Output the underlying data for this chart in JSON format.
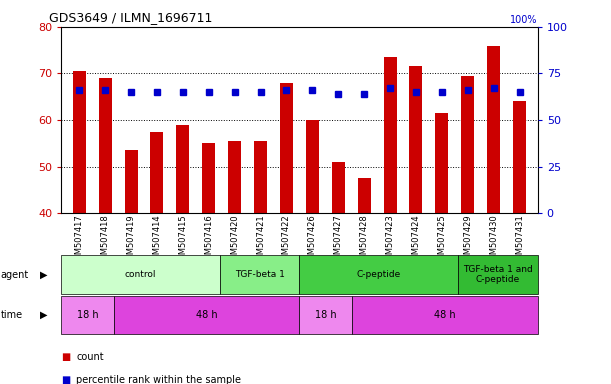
{
  "title": "GDS3649 / ILMN_1696711",
  "samples": [
    "GSM507417",
    "GSM507418",
    "GSM507419",
    "GSM507414",
    "GSM507415",
    "GSM507416",
    "GSM507420",
    "GSM507421",
    "GSM507422",
    "GSM507426",
    "GSM507427",
    "GSM507428",
    "GSM507423",
    "GSM507424",
    "GSM507425",
    "GSM507429",
    "GSM507430",
    "GSM507431"
  ],
  "counts": [
    70.5,
    69.0,
    53.5,
    57.5,
    59.0,
    55.0,
    55.5,
    55.5,
    68.0,
    60.0,
    51.0,
    47.5,
    73.5,
    71.5,
    61.5,
    69.5,
    76.0,
    64.0
  ],
  "percentiles": [
    66,
    66,
    65,
    65,
    65,
    65,
    65,
    65,
    66,
    66,
    64,
    64,
    67,
    65,
    65,
    66,
    67,
    65
  ],
  "ylim": [
    40,
    80
  ],
  "y2lim": [
    0,
    100
  ],
  "yticks": [
    40,
    50,
    60,
    70,
    80
  ],
  "y2ticks": [
    0,
    25,
    50,
    75,
    100
  ],
  "bar_color": "#cc0000",
  "dot_color": "#0000cc",
  "agent_groups": [
    {
      "label": "control",
      "start": 0,
      "end": 6,
      "color": "#ccffcc"
    },
    {
      "label": "TGF-beta 1",
      "start": 6,
      "end": 9,
      "color": "#88ee88"
    },
    {
      "label": "C-peptide",
      "start": 9,
      "end": 15,
      "color": "#44cc44"
    },
    {
      "label": "TGF-beta 1 and\nC-peptide",
      "start": 15,
      "end": 18,
      "color": "#33bb33"
    }
  ],
  "time_groups": [
    {
      "label": "18 h",
      "start": 0,
      "end": 2,
      "color": "#ee88ee"
    },
    {
      "label": "48 h",
      "start": 2,
      "end": 9,
      "color": "#dd44dd"
    },
    {
      "label": "18 h",
      "start": 9,
      "end": 11,
      "color": "#ee88ee"
    },
    {
      "label": "48 h",
      "start": 11,
      "end": 18,
      "color": "#dd44dd"
    }
  ],
  "legend_count_color": "#cc0000",
  "legend_dot_color": "#0000cc",
  "tick_label_color_left": "#cc0000",
  "tick_label_color_right": "#0000cc",
  "plot_bg": "#ffffff",
  "grid_color": "#000000"
}
